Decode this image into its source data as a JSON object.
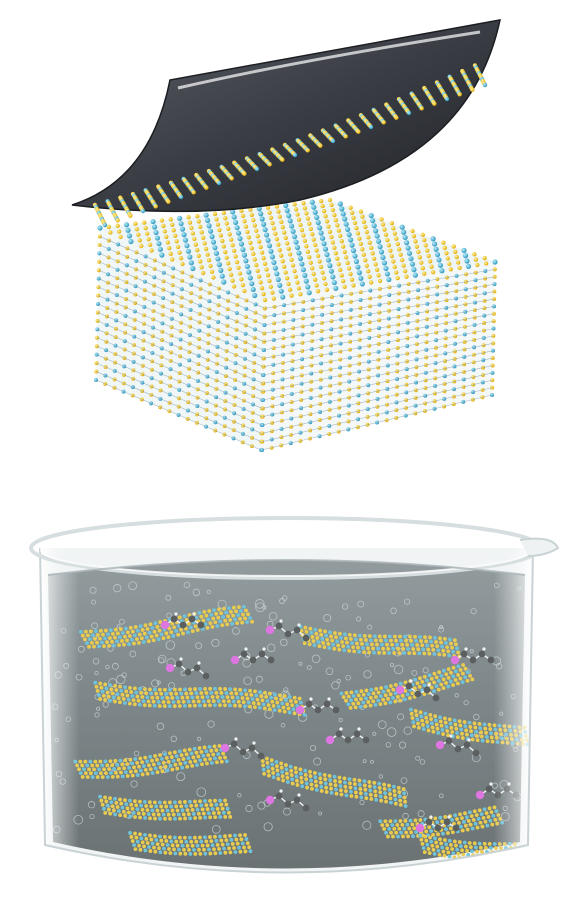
{
  "figure": {
    "layers_top": 6,
    "colors": {
      "sulfur": "#f2c200",
      "metal": "#36b3d6",
      "bond": "#6f8fa3",
      "tape": "#3a3d44",
      "tape_edge": "#1c1e22",
      "liquid": "#4f5a5c",
      "liquid_dark": "#2f3638",
      "glass": "#e8eef0",
      "carbon": "#1a1a1a",
      "hetero": "#e23de0",
      "hydrogen": "#ffffff",
      "bubble": "#cfd8da"
    },
    "icons": [
      "exfoliation-tape",
      "layered-crystal",
      "solvent-beaker",
      "nanosheet",
      "molecule",
      "bubble"
    ]
  }
}
